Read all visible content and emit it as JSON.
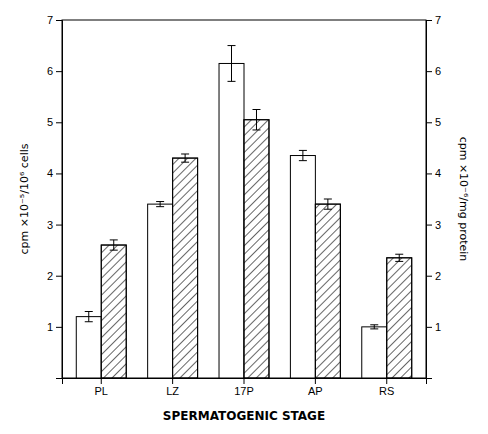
{
  "chart_data": {
    "type": "bar",
    "categories": [
      "PL",
      "LZ",
      "17P",
      "AP",
      "RS"
    ],
    "xlabel": "SPERMATOGENIC STAGE",
    "ylabel": "cpm ×10⁻⁵/10⁶ cells",
    "y2label": "cpm ×10⁻⁶/mg protein",
    "series": [
      {
        "color": "#ffffff",
        "values": [
          1.2,
          3.4,
          6.15,
          4.35,
          1.0
        ],
        "errors": [
          0.1,
          0.05,
          0.35,
          0.1,
          0.04
        ]
      },
      {
        "color": "#ffffff",
        "axis": "y2",
        "values": [
          2.6,
          4.3,
          5.05,
          3.4,
          2.35
        ],
        "errors": [
          0.1,
          0.08,
          0.2,
          0.1,
          0.07
        ]
      }
    ],
    "ylim": [
      0,
      7
    ],
    "yticks": [
      1,
      2,
      3,
      4,
      5,
      6,
      7
    ],
    "y2lim": [
      0,
      7
    ],
    "y2ticks": [
      1,
      2,
      3,
      4,
      5,
      6,
      7
    ]
  }
}
